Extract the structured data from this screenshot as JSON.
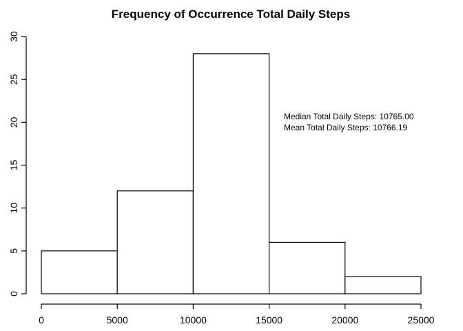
{
  "chart_data": {
    "type": "bar",
    "title": "Frequency of Occurrence Total Daily Steps",
    "xlabel": "",
    "ylabel": "",
    "bins": [
      [
        0,
        5000
      ],
      [
        5000,
        10000
      ],
      [
        10000,
        15000
      ],
      [
        15000,
        20000
      ],
      [
        20000,
        25000
      ]
    ],
    "values": [
      5,
      12,
      28,
      6,
      2
    ],
    "xlim": [
      0,
      25000
    ],
    "ylim": [
      0,
      30
    ],
    "x_ticks": [
      0,
      5000,
      10000,
      15000,
      20000,
      25000
    ],
    "y_ticks": [
      0,
      5,
      10,
      15,
      20,
      25,
      30
    ],
    "grid": false,
    "annotations": [
      "Median Total Daily Steps:  10765.00",
      "Mean Total Daily Steps:  10766.19"
    ]
  }
}
